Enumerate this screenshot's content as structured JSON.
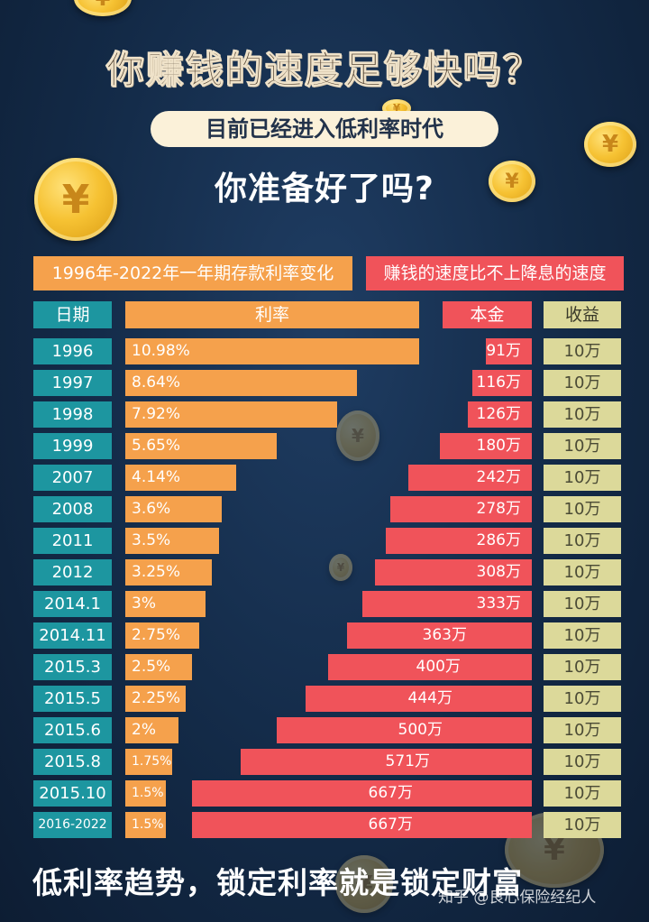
{
  "title": "你赚钱的速度足够快吗？",
  "pill_text": "目前已经进入低利率时代",
  "subtitle": "你准备好了吗?",
  "header_left": "1996年-2022年一年期存款利率变化",
  "header_right": "赚钱的速度比不上降息的速度",
  "columns": {
    "date": "日期",
    "rate": "利率",
    "principal": "本金",
    "return": "收益"
  },
  "coin_symbol": "¥",
  "footer": "低利率趋势，锁定利率就是锁定财富",
  "watermark": "知乎 @良心保险经纪人",
  "colors": {
    "date": "#1d96a0",
    "rate": "#f5a14c",
    "principal": "#f0535a",
    "return": "#dcd99a",
    "coin": "#f6c233"
  },
  "chart_data": {
    "type": "table",
    "title": "1996年-2022年一年期存款利率变化",
    "columns": [
      "日期",
      "利率",
      "本金",
      "收益"
    ],
    "rows": [
      {
        "date": "1996",
        "rate": 10.98,
        "rate_label": "10.98%",
        "principal": 91,
        "principal_label": "91万",
        "return_label": "10万"
      },
      {
        "date": "1997",
        "rate": 8.64,
        "rate_label": "8.64%",
        "principal": 116,
        "principal_label": "116万",
        "return_label": "10万"
      },
      {
        "date": "1998",
        "rate": 7.92,
        "rate_label": "7.92%",
        "principal": 126,
        "principal_label": "126万",
        "return_label": "10万"
      },
      {
        "date": "1999",
        "rate": 5.65,
        "rate_label": "5.65%",
        "principal": 180,
        "principal_label": "180万",
        "return_label": "10万"
      },
      {
        "date": "2007",
        "rate": 4.14,
        "rate_label": "4.14%",
        "principal": 242,
        "principal_label": "242万",
        "return_label": "10万"
      },
      {
        "date": "2008",
        "rate": 3.6,
        "rate_label": "3.6%",
        "principal": 278,
        "principal_label": "278万",
        "return_label": "10万"
      },
      {
        "date": "2011",
        "rate": 3.5,
        "rate_label": "3.5%",
        "principal": 286,
        "principal_label": "286万",
        "return_label": "10万"
      },
      {
        "date": "2012",
        "rate": 3.25,
        "rate_label": "3.25%",
        "principal": 308,
        "principal_label": "308万",
        "return_label": "10万"
      },
      {
        "date": "2014.1",
        "rate": 3,
        "rate_label": "3%",
        "principal": 333,
        "principal_label": "333万",
        "return_label": "10万"
      },
      {
        "date": "2014.11",
        "rate": 2.75,
        "rate_label": "2.75%",
        "principal": 363,
        "principal_label": "363万",
        "return_label": "10万"
      },
      {
        "date": "2015.3",
        "rate": 2.5,
        "rate_label": "2.5%",
        "principal": 400,
        "principal_label": "400万",
        "return_label": "10万"
      },
      {
        "date": "2015.5",
        "rate": 2.25,
        "rate_label": "2.25%",
        "principal": 444,
        "principal_label": "444万",
        "return_label": "10万"
      },
      {
        "date": "2015.6",
        "rate": 2,
        "rate_label": "2%",
        "principal": 500,
        "principal_label": "500万",
        "return_label": "10万"
      },
      {
        "date": "2015.8",
        "rate": 1.75,
        "rate_label": "1.75%",
        "principal": 571,
        "principal_label": "571万",
        "return_label": "10万"
      },
      {
        "date": "2015.10",
        "rate": 1.5,
        "rate_label": "1.5%",
        "principal": 667,
        "principal_label": "667万",
        "return_label": "10万"
      },
      {
        "date": "2016-2022",
        "rate": 1.5,
        "rate_label": "1.5%",
        "principal": 667,
        "principal_label": "667万",
        "return_label": "10万"
      }
    ]
  }
}
